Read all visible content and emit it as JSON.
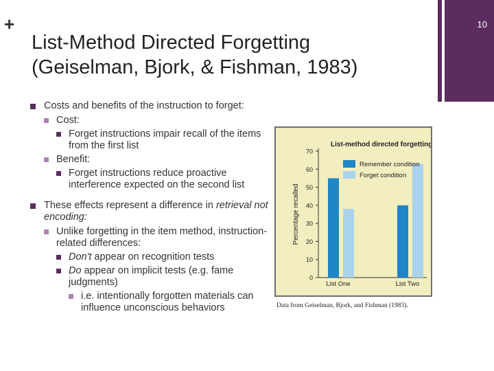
{
  "slide": {
    "plus": "+",
    "page_number": "10",
    "title_line1": "List-Method Directed Forgetting",
    "title_line2": "(Geiselman, Bjork, & Fishman, 1983)"
  },
  "bullets": {
    "b1": "Costs and benefits of the instruction to forget:",
    "b1_cost": "Cost:",
    "b1_cost_detail": "Forget instructions impair recall of the items from the first list",
    "b1_benefit": "Benefit:",
    "b1_benefit_detail": "Forget instructions reduce proactive interference expected on the second list",
    "b2_prefix": "These effects represent a difference in ",
    "b2_italic": "retrieval not encoding:",
    "b2_sub": "Unlike forgetting in the item method, instruction-related differences:",
    "b2_dont_italic": "Don't",
    "b2_dont_rest": " appear on recognition tests",
    "b2_do_italic": "Do",
    "b2_do_rest": " appear on implicit tests (e.g. fame judgments)",
    "b2_ie": "i.e. intentionally forgotten materials can influence unconscious behaviors"
  },
  "caption": "Data from Geiselman, Bjork, and Fishman (1983).",
  "chart_data": {
    "type": "bar",
    "title": "List-method directed forgetting",
    "ylabel": "Percentage recalled",
    "xlabel": "",
    "categories": [
      "List One",
      "List Two"
    ],
    "ylim": [
      0,
      70
    ],
    "yticks": [
      0,
      10,
      20,
      30,
      40,
      50,
      60,
      70
    ],
    "series": [
      {
        "name": "Remember condition",
        "values": [
          55,
          40
        ],
        "color": "#1f86c8"
      },
      {
        "name": "Forget condition",
        "values": [
          38,
          63
        ],
        "color": "#a9d3ea"
      }
    ],
    "legend": "top-left",
    "grid": false
  }
}
